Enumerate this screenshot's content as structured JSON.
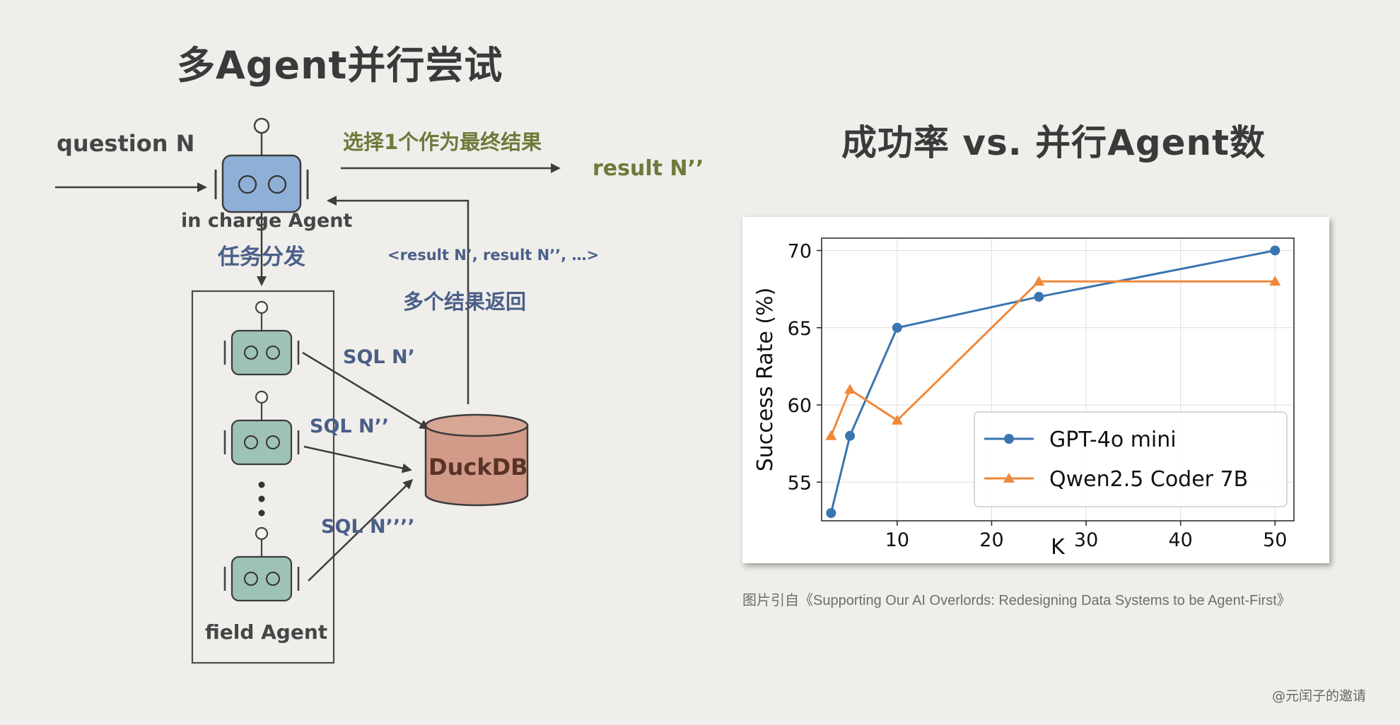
{
  "diagram": {
    "title": "多Agent并行尝试",
    "question_label": "question N",
    "select_label": "选择1个作为最终结果",
    "result_label": "result N’’",
    "in_charge_label": "in charge Agent",
    "dispatch_label": "任务分发",
    "results_list_label": "<result N’, result N’’, …>",
    "multi_results_label": "多个结果返回",
    "sql1_label": "SQL N’",
    "sql2_label": "SQL N’’",
    "sql3_label": "SQL N’’’’",
    "db_label": "DuckDB",
    "field_agent_label": "field Agent",
    "colors": {
      "in_charge_robot": "#8fb0d6",
      "field_robot": "#9fc2b6",
      "db": "#d29a88",
      "green_text": "#6c7a3a",
      "blue_text": "#4a5f88"
    }
  },
  "chart_section": {
    "title": "成功率 vs. 并行Agent数",
    "caption": "图片引自《Supporting Our AI Overlords: Redesigning Data Systems to be Agent-First》"
  },
  "watermark": "@元闰子的邀请",
  "chart_data": {
    "type": "line",
    "xlabel": "K",
    "ylabel": "Success Rate (%)",
    "xlim": [
      2,
      52
    ],
    "ylim": [
      52.5,
      70.8
    ],
    "xticks": [
      10,
      20,
      30,
      40,
      50
    ],
    "yticks": [
      55,
      60,
      65,
      70
    ],
    "grid": true,
    "legend_position": "lower-right",
    "series": [
      {
        "name": "GPT-4o mini",
        "color": "#3a75b0",
        "marker": "circle",
        "x": [
          3,
          5,
          10,
          25,
          50
        ],
        "y": [
          53,
          58,
          65,
          67,
          70
        ]
      },
      {
        "name": "Qwen2.5 Coder 7B",
        "color": "#f0883a",
        "marker": "triangle",
        "x": [
          3,
          5,
          10,
          25,
          50
        ],
        "y": [
          58,
          61,
          59,
          68,
          68
        ]
      }
    ]
  }
}
